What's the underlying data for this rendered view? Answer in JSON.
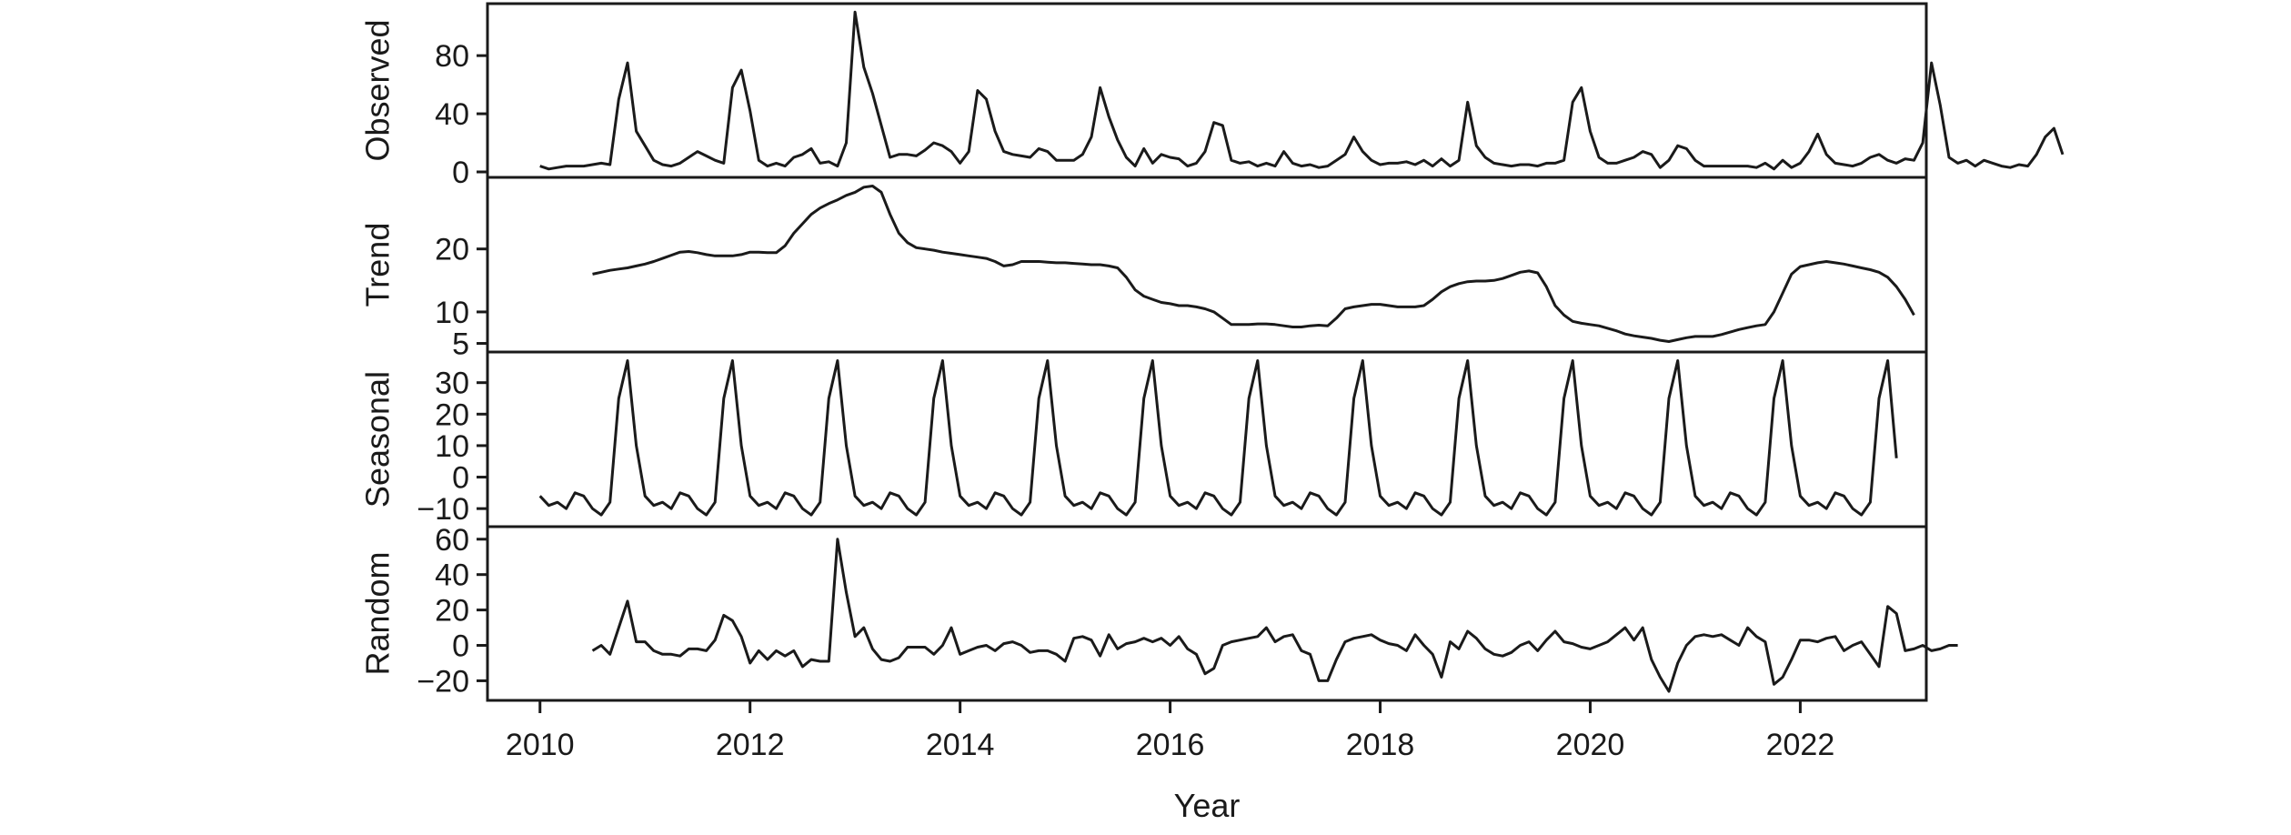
{
  "chart_data": {
    "type": "line",
    "xlabel": "Year",
    "x_ticks": [
      2010,
      2012,
      2014,
      2016,
      2018,
      2020,
      2022
    ],
    "xlim": [
      2009.5,
      2023.2
    ],
    "panels": [
      {
        "name": "Observed",
        "ylim": [
          0,
          112
        ],
        "y_ticks": [
          0,
          40,
          80
        ],
        "x_start": 2010.0,
        "step": 0.08333,
        "values": [
          4,
          2,
          3,
          4,
          4,
          4,
          5,
          6,
          5,
          50,
          75,
          28,
          18,
          8,
          5,
          4,
          6,
          10,
          14,
          11,
          8,
          6,
          58,
          70,
          42,
          8,
          4,
          6,
          4,
          10,
          12,
          16,
          6,
          7,
          4,
          20,
          110,
          72,
          54,
          32,
          10,
          12,
          12,
          11,
          15,
          20,
          18,
          14,
          6,
          14,
          56,
          50,
          28,
          14,
          12,
          11,
          10,
          16,
          14,
          8,
          8,
          8,
          12,
          24,
          58,
          38,
          22,
          10,
          4,
          16,
          6,
          12,
          10,
          9,
          4,
          6,
          14,
          34,
          32,
          8,
          6,
          7,
          4,
          6,
          4,
          14,
          6,
          4,
          5,
          3,
          4,
          8,
          12,
          24,
          14,
          8,
          5,
          6,
          6,
          7,
          5,
          8,
          4,
          9,
          4,
          8,
          48,
          18,
          10,
          6,
          5,
          4,
          5,
          5,
          4,
          6,
          6,
          8,
          48,
          58,
          28,
          10,
          6,
          6,
          8,
          10,
          14,
          12,
          3,
          8,
          18,
          16,
          8,
          4,
          4,
          4,
          4,
          4,
          4,
          3,
          6,
          2,
          8,
          3,
          6,
          14,
          26,
          12,
          6,
          5,
          4,
          6,
          10,
          12,
          8,
          6,
          9,
          8,
          20,
          75,
          46,
          10,
          6,
          8,
          4,
          8,
          6,
          4,
          3,
          5,
          4,
          12,
          24,
          30,
          12
        ]
      },
      {
        "name": "Trend",
        "ylim": [
          4.5,
          30.5
        ],
        "y_ticks": [
          5,
          10,
          20
        ],
        "x_start": 2010.5,
        "step": 0.08333,
        "values": [
          16,
          16.3,
          16.6,
          16.8,
          17,
          17.3,
          17.6,
          18,
          18.5,
          19,
          19.5,
          19.6,
          19.4,
          19.1,
          18.9,
          18.9,
          18.9,
          19.1,
          19.5,
          19.5,
          19.4,
          19.4,
          20.5,
          22.5,
          24,
          25.5,
          26.5,
          27.2,
          27.8,
          28.5,
          29,
          29.8,
          30,
          29,
          25.5,
          22.5,
          21,
          20.2,
          20,
          19.8,
          19.5,
          19.3,
          19.1,
          18.9,
          18.7,
          18.5,
          18,
          17.3,
          17.5,
          18,
          18,
          18,
          17.9,
          17.8,
          17.8,
          17.7,
          17.6,
          17.5,
          17.5,
          17.3,
          17,
          15.5,
          13.5,
          12.5,
          12,
          11.5,
          11.3,
          11,
          11,
          10.8,
          10.5,
          10,
          9,
          8,
          8,
          8,
          8.1,
          8.1,
          8,
          7.8,
          7.6,
          7.6,
          7.8,
          7.9,
          7.8,
          9,
          10.5,
          10.8,
          11,
          11.2,
          11.2,
          11,
          10.8,
          10.8,
          10.8,
          11,
          12,
          13.2,
          14,
          14.5,
          14.8,
          14.9,
          14.9,
          15,
          15.3,
          15.8,
          16.3,
          16.5,
          16.2,
          14,
          11,
          9.5,
          8.5,
          8.2,
          8,
          7.8,
          7.4,
          7,
          6.5,
          6.2,
          6,
          5.8,
          5.5,
          5.3,
          5.6,
          5.9,
          6.1,
          6.1,
          6.1,
          6.4,
          6.8,
          7.2,
          7.5,
          7.8,
          8,
          10,
          13,
          16,
          17.2,
          17.5,
          17.8,
          18,
          17.8,
          17.6,
          17.3,
          17,
          16.7,
          16.3,
          15.5,
          14,
          12,
          9.5
        ]
      },
      {
        "name": "Seasonal",
        "ylim": [
          -14,
          38
        ],
        "y_ticks": [
          -10,
          0,
          10,
          20,
          30
        ],
        "x_start": 2010.0,
        "step": 0.08333,
        "cycle_values": [
          -6,
          -9,
          -8,
          -10,
          -5,
          -6,
          -10,
          -12,
          -8,
          25,
          37,
          10,
          -6
        ],
        "cycles": 13,
        "final_cycle_values": [
          -6,
          -9,
          -8,
          -10,
          -5,
          -6,
          -10,
          -12,
          -8,
          25,
          37,
          6
        ]
      },
      {
        "name": "Random",
        "ylim": [
          -28,
          64
        ],
        "y_ticks": [
          -20,
          0,
          20,
          40,
          60
        ],
        "x_start": 2010.5,
        "step": 0.08333,
        "values": [
          -3,
          0,
          -5,
          10,
          25,
          2,
          2,
          -3,
          -5,
          -5,
          -6,
          -2,
          -2,
          -3,
          3,
          17,
          14,
          5,
          -10,
          -3,
          -8,
          -3,
          -6,
          -3,
          -12,
          -8,
          -9,
          -9,
          60,
          30,
          5,
          10,
          -2,
          -8,
          -9,
          -7,
          -1,
          -1,
          -1,
          -5,
          0,
          10,
          -5,
          -3,
          -1,
          0,
          -3,
          1,
          2,
          0,
          -4,
          -3,
          -3,
          -5,
          -9,
          4,
          5,
          3,
          -6,
          6,
          -2,
          1,
          2,
          4,
          2,
          4,
          0,
          5,
          -2,
          -5,
          -16,
          -13,
          0,
          2,
          3,
          4,
          5,
          10,
          2,
          5,
          6,
          -3,
          -5,
          -20,
          -20,
          -8,
          2,
          4,
          5,
          6,
          3,
          1,
          0,
          -3,
          6,
          0,
          -5,
          -18,
          2,
          -2,
          8,
          4,
          -2,
          -5,
          -6,
          -4,
          0,
          2,
          -3,
          3,
          8,
          2,
          1,
          -1,
          -2,
          0,
          2,
          6,
          10,
          3,
          10,
          -8,
          -18,
          -26,
          -10,
          0,
          5,
          6,
          5,
          6,
          3,
          0,
          10,
          5,
          2,
          -22,
          -18,
          -8,
          3,
          3,
          2,
          4,
          5,
          -3,
          0,
          2,
          -5,
          -12,
          22,
          18,
          -3,
          -2,
          0,
          -3,
          -2,
          0,
          0
        ]
      }
    ]
  }
}
